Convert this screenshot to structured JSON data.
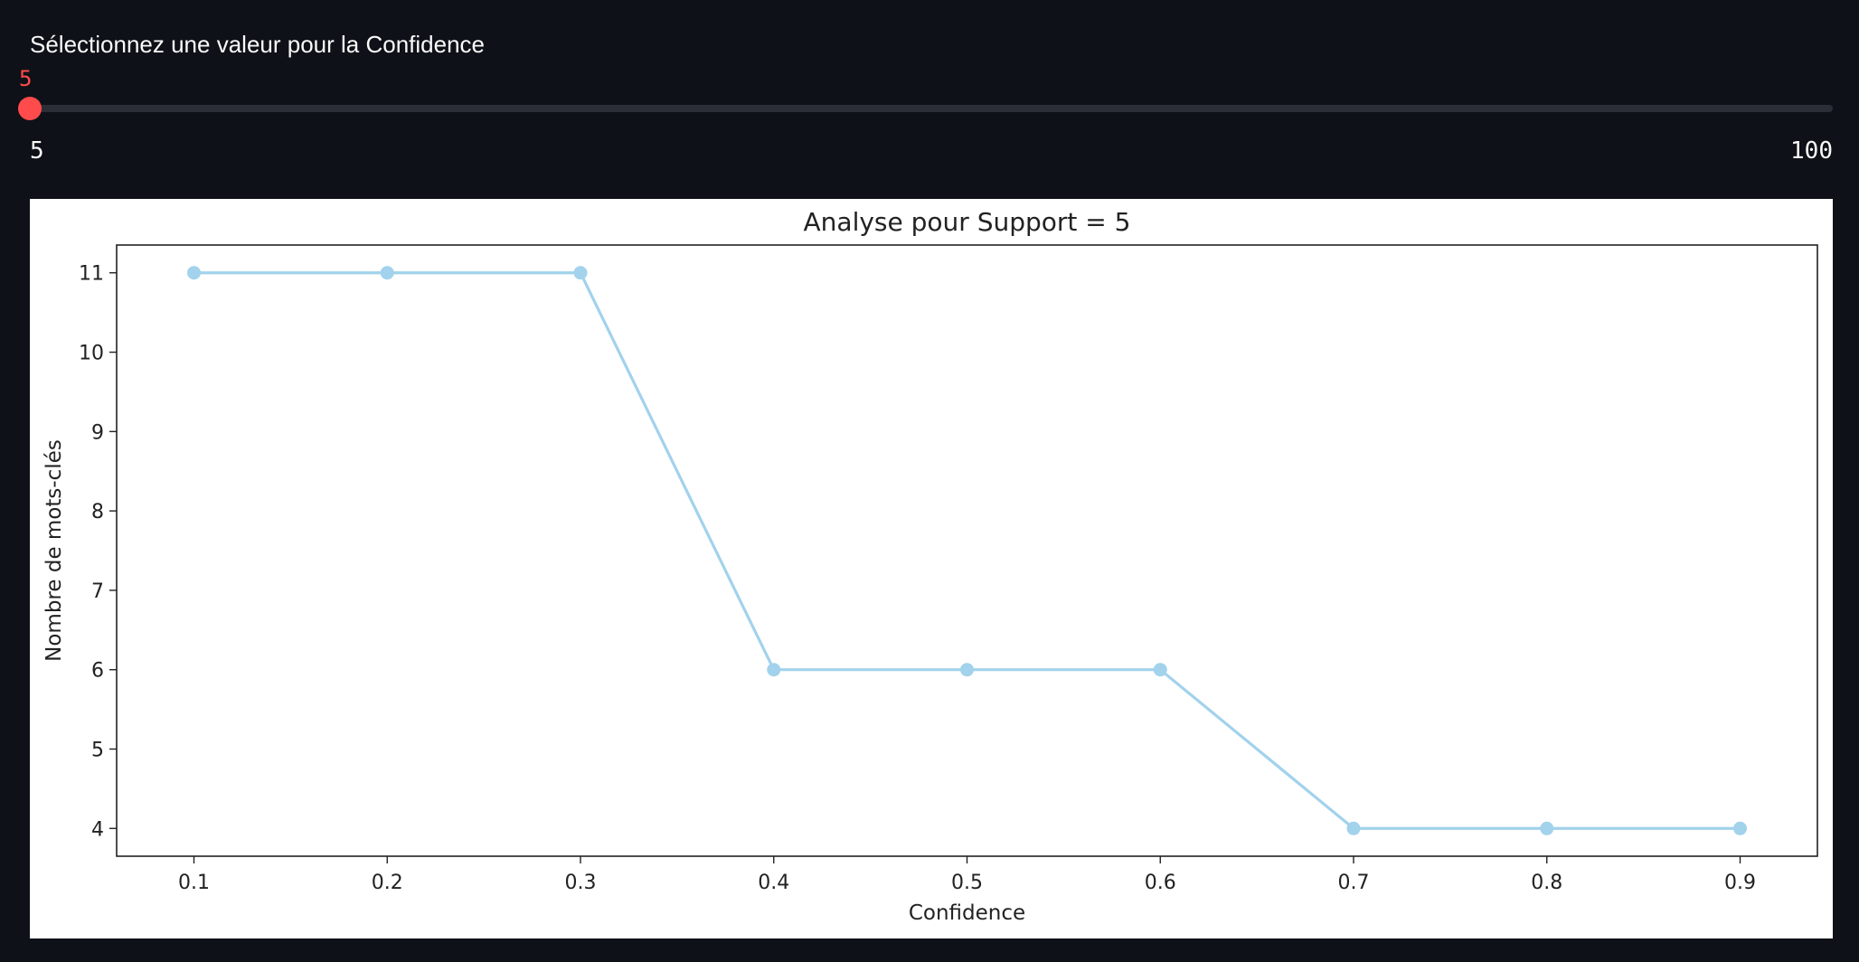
{
  "slider": {
    "label": "Sélectionnez une valeur pour la Confidence",
    "value": 5,
    "value_text": "5",
    "min": 5,
    "max": 100,
    "min_text": "5",
    "max_text": "100",
    "accent_color": "#ff4b4b",
    "track_color": "#2b2e36"
  },
  "chart_data": {
    "type": "line",
    "title": "Analyse pour Support = 5",
    "xlabel": "Confidence",
    "ylabel": "Nombre de mots-clés",
    "x": [
      0.1,
      0.2,
      0.3,
      0.4,
      0.5,
      0.6,
      0.7,
      0.8,
      0.9
    ],
    "x_tick_labels": [
      "0.1",
      "0.2",
      "0.3",
      "0.4",
      "0.5",
      "0.6",
      "0.7",
      "0.8",
      "0.9"
    ],
    "y": [
      11,
      11,
      11,
      6,
      6,
      6,
      4,
      4,
      4
    ],
    "y_ticks": [
      4,
      5,
      6,
      7,
      8,
      9,
      10,
      11
    ],
    "y_tick_labels": [
      "4",
      "5",
      "6",
      "7",
      "8",
      "9",
      "10",
      "11"
    ],
    "xlim": [
      0.06,
      0.94
    ],
    "ylim": [
      3.65,
      11.35
    ],
    "marker": "circle",
    "grid": false,
    "line_color": "#a2d2ec"
  }
}
